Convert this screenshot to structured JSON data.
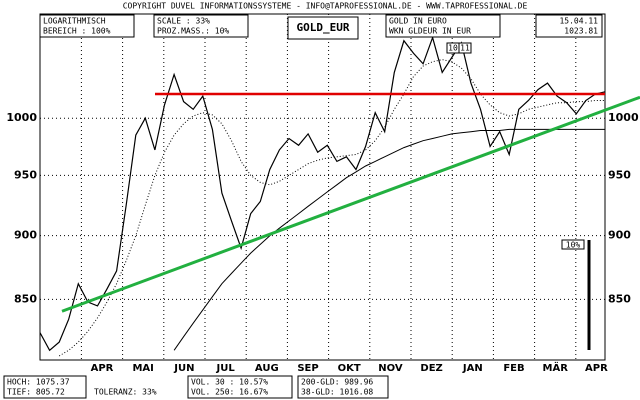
{
  "header": {
    "copyright": "COPYRIGHT DUVEL INFORMATIONSSYSTEME - INFO@TAPROFESSIONAL.DE - WWW.TAPROFESSIONAL.DE",
    "scale_mode": "LOGARITHMISCH",
    "range": "BEREICH : 100%",
    "scale": "SCALE : 33%",
    "percent_measure": "PROZ.MASS.: 10%",
    "symbol": "GOLD_EUR",
    "name": "GOLD IN EURO",
    "wkn": "WKN GLDEUR IN EUR",
    "date": "15.04.11",
    "last": "1023.81"
  },
  "footer": {
    "high": "HOCH: 1075.37",
    "low": "TIEF: 805.72",
    "tolerance": "TOLERANZ: 33%",
    "vol30": "VOL. 30 : 10.57%",
    "vol250": "VOL. 250: 16.67%",
    "gd200": "200-GLD: 989.96",
    "gd38": "38-GLD: 1016.08"
  },
  "chart_data": {
    "type": "line",
    "log_scale": true,
    "grid": true,
    "xticks": [
      "APR",
      "MAI",
      "JUN",
      "JUL",
      "AUG",
      "SEP",
      "OKT",
      "NOV",
      "DEZ",
      "JAN",
      "FEB",
      "MÄR",
      "APR"
    ],
    "ylim": [
      805,
      1098
    ],
    "yticks": [
      850,
      900,
      950,
      1000
    ],
    "series": [
      {
        "color": "#000000",
        "values": [
          825,
          812,
          818,
          835,
          862,
          848,
          845,
          858,
          872,
          925,
          985,
          1000,
          972,
          1012,
          1040,
          1015,
          1008,
          1020,
          990,
          935,
          912,
          890,
          918,
          928,
          955,
          972,
          982,
          976,
          986,
          970,
          976,
          962,
          966,
          955,
          975,
          1005,
          988,
          1042,
          1072,
          1060,
          1050,
          1075,
          1042,
          1056,
          1070,
          1032,
          1008,
          975,
          988,
          968,
          1008,
          1016,
          1026,
          1032,
          1020,
          1014,
          1004,
          1016,
          1022,
          1024
        ]
      },
      {
        "color": "#000000",
        "dashed": true,
        "values": [
          null,
          null,
          808,
          812,
          818,
          826,
          836,
          848,
          862,
          880,
          900,
          925,
          950,
          970,
          985,
          995,
          1002,
          1005,
          1003,
          995,
          980,
          962,
          950,
          944,
          942,
          945,
          950,
          955,
          960,
          963,
          965,
          966,
          967,
          968,
          972,
          980,
          992,
          1008,
          1022,
          1038,
          1048,
          1052,
          1054,
          1052,
          1046,
          1036,
          1022,
          1012,
          1005,
          1002,
          1004,
          1008,
          1010,
          1012,
          1014,
          1014,
          1015,
          1015,
          1016,
          1016
        ]
      },
      {
        "color": "#000000",
        "values": [
          null,
          null,
          null,
          null,
          null,
          null,
          null,
          null,
          null,
          null,
          null,
          null,
          null,
          null,
          812,
          822,
          832,
          842,
          852,
          862,
          870,
          878,
          886,
          893,
          900,
          906,
          912,
          918,
          924,
          930,
          936,
          942,
          948,
          953,
          958,
          962,
          966,
          970,
          974,
          977,
          980,
          982,
          984,
          986,
          987,
          988,
          989,
          989,
          989,
          990,
          990,
          990,
          990,
          990,
          990,
          990,
          990,
          990,
          990,
          990
        ]
      }
    ],
    "resistance": {
      "value": 1022,
      "color": "#e00000"
    },
    "trendline": {
      "values": [
        841,
        1019
      ],
      "color": "#22b040"
    },
    "annotations": [
      "10",
      "11"
    ],
    "scale_bar_label": "10%"
  }
}
